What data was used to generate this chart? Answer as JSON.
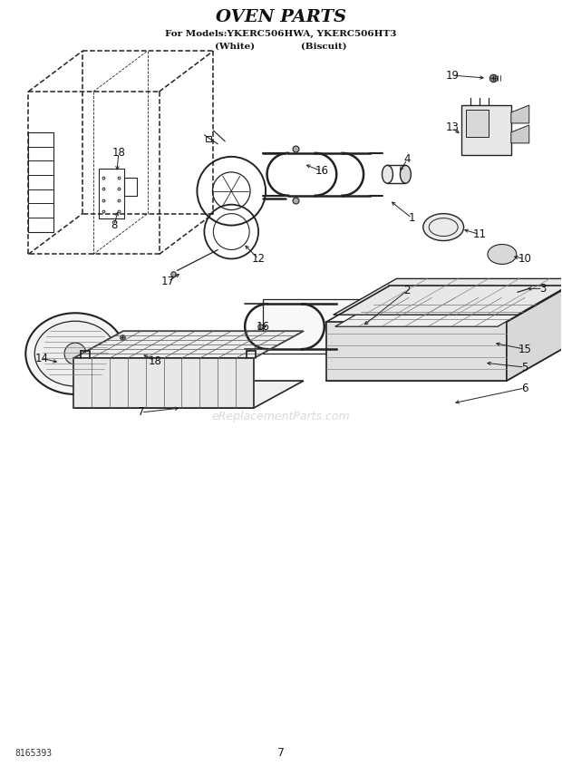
{
  "title": "OVEN PARTS",
  "subtitle_line1": "For Models:YKERC506HWA, YKERC506HT3",
  "subtitle_line2": "(White)              (Biscuit)",
  "doc_number": "8165393",
  "page_number": "7",
  "background_color": "#ffffff",
  "title_fontsize": 14,
  "subtitle_fontsize": 7.5,
  "fig_width": 6.2,
  "fig_height": 8.56,
  "dpi": 100,
  "watermark": "eReplacementParts.com",
  "lc": "#222222"
}
